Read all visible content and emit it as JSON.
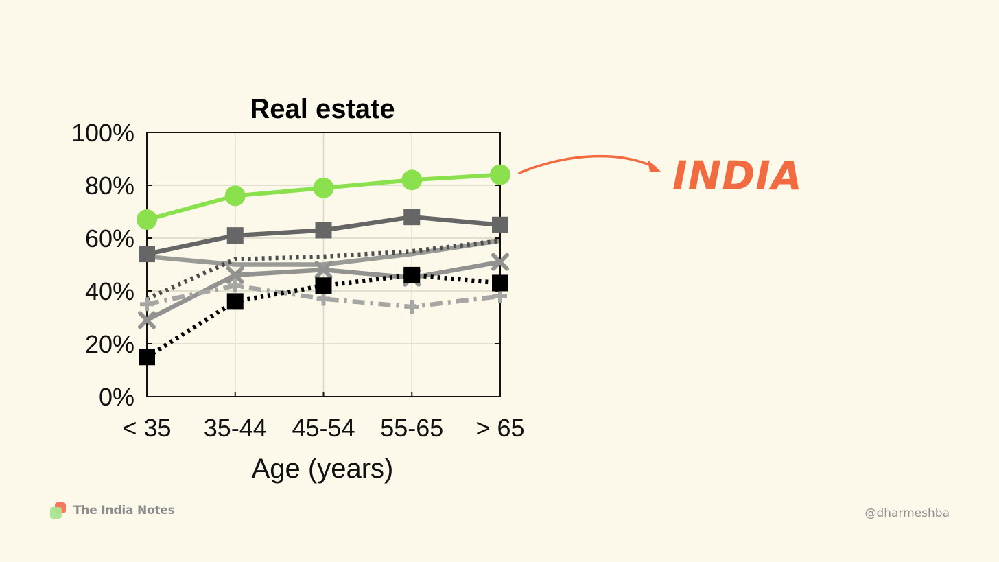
{
  "chart_data": {
    "type": "line",
    "title": "Real estate",
    "xlabel": "Age (years)",
    "ylabel": "",
    "categories": [
      "< 35",
      "35-44",
      "45-54",
      "55-65",
      "> 65"
    ],
    "yticks": [
      "0%",
      "20%",
      "40%",
      "60%",
      "80%",
      "100%"
    ],
    "ylim": [
      0,
      100
    ],
    "grid": true,
    "series": [
      {
        "values": [
          67,
          76,
          79,
          82,
          84
        ],
        "color": "#8be04e",
        "marker": "circle",
        "line": "solid"
      },
      {
        "values": [
          54,
          61,
          63,
          68,
          65
        ],
        "color": "#666666",
        "marker": "square",
        "line": "solid"
      },
      {
        "values": [
          53,
          50,
          50,
          54,
          59
        ],
        "color": "#9a9a96",
        "marker": "none",
        "line": "solid"
      },
      {
        "values": [
          37,
          52,
          53,
          55,
          59
        ],
        "color": "#4d4d4d",
        "marker": "none",
        "line": "dotted"
      },
      {
        "values": [
          29,
          46,
          48,
          45,
          51
        ],
        "color": "#929290",
        "marker": "x",
        "line": "solid"
      },
      {
        "values": [
          35,
          42,
          37,
          34,
          38
        ],
        "color": "#a6a6a4",
        "marker": "plus",
        "line": "dashdot"
      },
      {
        "values": [
          15,
          36,
          42,
          46,
          43
        ],
        "color": "#000000",
        "marker": "square",
        "line": "dotted"
      }
    ],
    "annotation": {
      "text": "INDIA",
      "color": "#f26a3f"
    }
  },
  "brand": {
    "name": "The India Notes"
  },
  "handle": "@dharmeshba"
}
